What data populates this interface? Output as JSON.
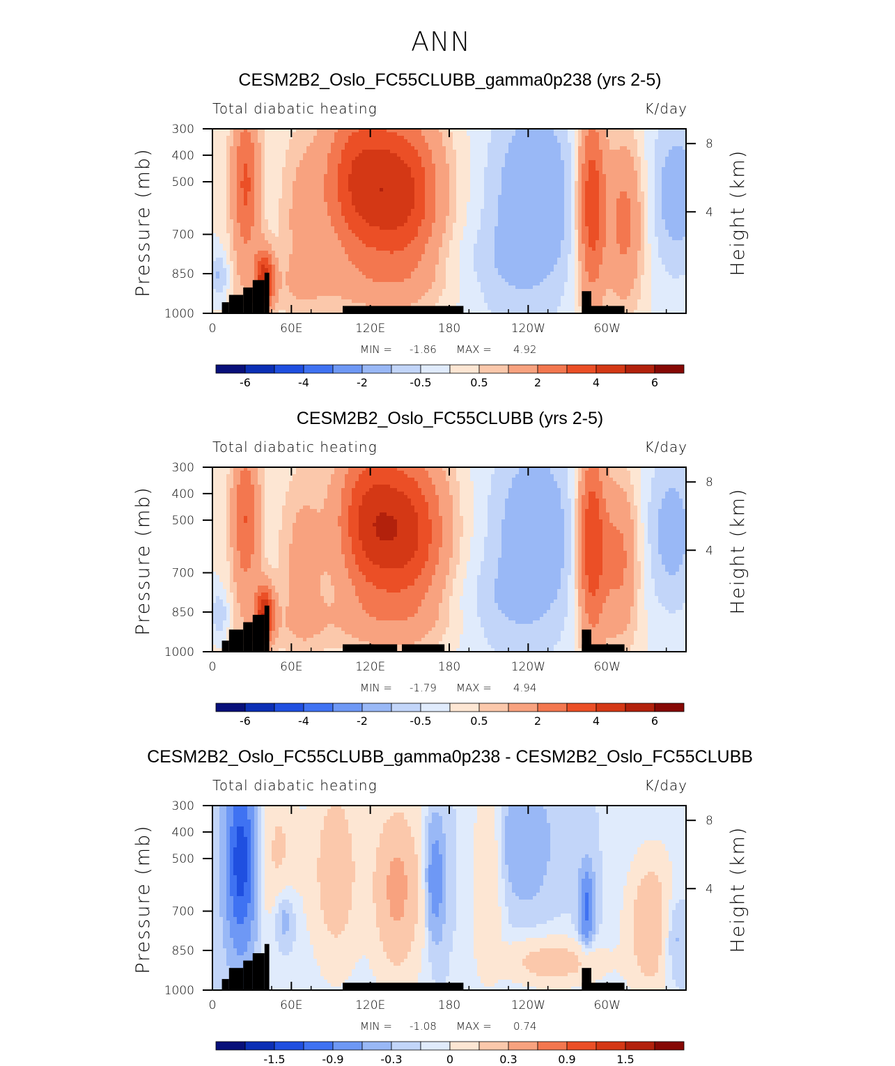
{
  "figure_title": "ANN",
  "chart_data": [
    {
      "type": "heatmap",
      "title": "CESM2B2_Oslo_FC55CLUBB_gamma0p238 (yrs 2-5)",
      "subtitle_left": "Total diabatic heating",
      "subtitle_right": "K/day",
      "ylabel": "Pressure (mb)",
      "ylabel_right": "Height (km)",
      "x_ticks": [
        "0",
        "60E",
        "120E",
        "180",
        "120W",
        "60W"
      ],
      "y_ticks": [
        "300",
        "400",
        "500",
        "700",
        "850",
        "1000"
      ],
      "y_right_ticks": [
        "8",
        "4"
      ],
      "min_label": "MIN =",
      "min_value": "-1.86",
      "max_label": "MAX =",
      "max_value": "4.92",
      "colorbar_labels": [
        "-6",
        "-4",
        "-2",
        "-0.5",
        "0.5",
        "2",
        "4",
        "6"
      ]
    },
    {
      "type": "heatmap",
      "title": "CESM2B2_Oslo_FC55CLUBB (yrs 2-5)",
      "subtitle_left": "Total diabatic heating",
      "subtitle_right": "K/day",
      "ylabel": "Pressure (mb)",
      "ylabel_right": "Height (km)",
      "x_ticks": [
        "0",
        "60E",
        "120E",
        "180",
        "120W",
        "60W"
      ],
      "y_ticks": [
        "300",
        "400",
        "500",
        "700",
        "850",
        "1000"
      ],
      "y_right_ticks": [
        "8",
        "4"
      ],
      "min_label": "MIN =",
      "min_value": "-1.79",
      "max_label": "MAX =",
      "max_value": "4.94",
      "colorbar_labels": [
        "-6",
        "-4",
        "-2",
        "-0.5",
        "0.5",
        "2",
        "4",
        "6"
      ]
    },
    {
      "type": "heatmap",
      "title": "CESM2B2_Oslo_FC55CLUBB_gamma0p238 - CESM2B2_Oslo_FC55CLUBB",
      "subtitle_left": "Total diabatic heating",
      "subtitle_right": "K/day",
      "ylabel": "Pressure (mb)",
      "ylabel_right": "Height (km)",
      "x_ticks": [
        "0",
        "60E",
        "120E",
        "180",
        "120W",
        "60W"
      ],
      "y_ticks": [
        "300",
        "400",
        "500",
        "700",
        "850",
        "1000"
      ],
      "y_right_ticks": [
        "8",
        "4"
      ],
      "min_label": "MIN =",
      "min_value": "-1.08",
      "max_label": "MAX =",
      "max_value": "0.74",
      "colorbar_labels": [
        "-1.5",
        "-0.9",
        "-0.3",
        "0",
        "0.3",
        "0.9",
        "1.5"
      ]
    }
  ],
  "colors": {
    "palette": [
      "#08107a",
      "#0b2fb5",
      "#1f4fe0",
      "#3f72f2",
      "#6e98f5",
      "#99b8f6",
      "#c2d5f9",
      "#e0ebfc",
      "#fde6d3",
      "#fbc8ab",
      "#f8a27f",
      "#f3774f",
      "#eb4f26",
      "#d43815",
      "#b2210c",
      "#860804"
    ],
    "terrain": "#000000"
  }
}
